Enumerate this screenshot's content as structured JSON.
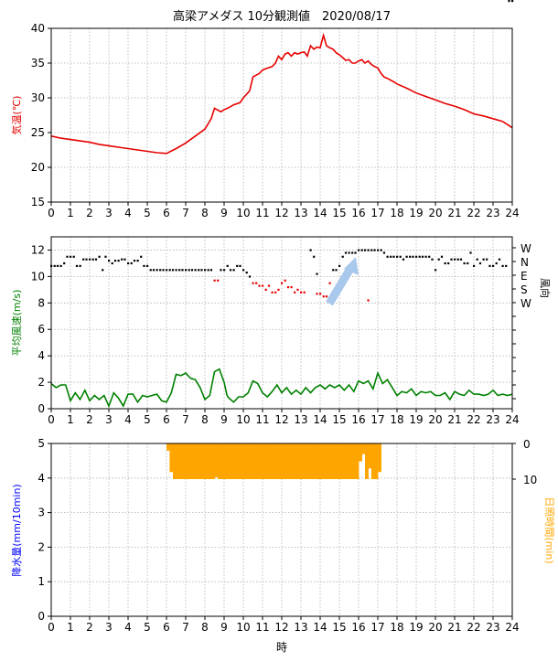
{
  "title": "高梁アメダス 10分観測値　2020/08/17",
  "xlabel": "時",
  "xticks": [
    "0",
    "1",
    "2",
    "3",
    "4",
    "5",
    "6",
    "7",
    "8",
    "9",
    "10",
    "11",
    "12",
    "13",
    "14",
    "15",
    "16",
    "17",
    "18",
    "19",
    "20",
    "21",
    "22",
    "23",
    "24"
  ],
  "colors": {
    "temp": "#e60000",
    "wind": "#008000",
    "rain_label": "#0000ff",
    "sun": "#ffa500",
    "arrow": "#a8c8ec"
  },
  "chart_data": [
    {
      "type": "line",
      "ylabel": "気温(℃)",
      "xlim": [
        0,
        24
      ],
      "ylim": [
        15,
        40
      ],
      "yticks": [
        "15",
        "20",
        "25",
        "30",
        "35",
        "40"
      ],
      "grid": true,
      "x": [
        0,
        0.5,
        1,
        1.5,
        2,
        2.5,
        3,
        3.5,
        4,
        4.5,
        5,
        5.5,
        6,
        6.5,
        7,
        7.5,
        8,
        8.33,
        8.5,
        8.83,
        9,
        9.17,
        9.5,
        9.83,
        10,
        10.33,
        10.5,
        10.83,
        11,
        11.17,
        11.5,
        11.67,
        11.83,
        12,
        12.17,
        12.33,
        12.5,
        12.67,
        12.83,
        13,
        13.17,
        13.33,
        13.5,
        13.67,
        13.83,
        14,
        14.17,
        14.33,
        14.5,
        14.67,
        14.83,
        15,
        15.17,
        15.33,
        15.5,
        15.67,
        15.83,
        16,
        16.17,
        16.33,
        16.5,
        16.67,
        16.83,
        17,
        17.17,
        17.33,
        17.5,
        17.83,
        18,
        18.5,
        19,
        19.5,
        20,
        20.5,
        21,
        21.5,
        22,
        22.5,
        23,
        23.5,
        24
      ],
      "y": [
        24.5,
        24.2,
        24,
        23.8,
        23.6,
        23.3,
        23.1,
        22.9,
        22.7,
        22.5,
        22.3,
        22.1,
        22.0,
        22.7,
        23.5,
        24.5,
        25.5,
        27,
        28.5,
        28,
        28.3,
        28.5,
        29,
        29.3,
        30,
        31,
        33,
        33.5,
        34,
        34.2,
        34.5,
        35,
        36,
        35.5,
        36.3,
        36.5,
        36,
        36.5,
        36.3,
        36.5,
        36.6,
        36,
        37.5,
        37,
        37.3,
        37.2,
        39,
        37.5,
        37.2,
        37,
        36.5,
        36.2,
        35.8,
        35.4,
        35.5,
        35,
        35,
        35.3,
        35.5,
        35,
        35.3,
        34.8,
        34.5,
        34.3,
        33.5,
        33,
        32.8,
        32.3,
        32,
        31.4,
        30.7,
        30.2,
        29.7,
        29.2,
        28.8,
        28.3,
        27.7,
        27.4,
        27,
        26.6,
        25.7
      ]
    },
    {
      "type": "line+scatter",
      "ylabel": "平均風速(m/s)",
      "y2label": "風向",
      "xlim": [
        0,
        24
      ],
      "ylim": [
        0,
        13
      ],
      "yticks": [
        "0",
        "2",
        "4",
        "6",
        "8",
        "10",
        "12"
      ],
      "direction_ticks": [
        "W",
        "N",
        "E",
        "S",
        "W"
      ],
      "grid": true,
      "series": [
        {
          "kind": "wind_speed",
          "x": [
            0,
            0.25,
            0.5,
            0.75,
            1,
            1.25,
            1.5,
            1.75,
            2,
            2.25,
            2.5,
            2.75,
            3,
            3.25,
            3.5,
            3.75,
            4,
            4.25,
            4.5,
            4.75,
            5,
            5.25,
            5.5,
            5.75,
            6,
            6.25,
            6.5,
            6.75,
            7,
            7.25,
            7.5,
            7.75,
            8,
            8.25,
            8.5,
            8.75,
            9,
            9.15,
            9.25,
            9.5,
            9.75,
            10,
            10.25,
            10.5,
            10.75,
            11,
            11.25,
            11.5,
            11.75,
            12,
            12.25,
            12.5,
            12.75,
            13,
            13.25,
            13.5,
            13.75,
            14,
            14.25,
            14.5,
            14.75,
            15,
            15.25,
            15.5,
            15.75,
            16,
            16.25,
            16.5,
            16.75,
            17,
            17.25,
            17.5,
            17.75,
            18,
            18.25,
            18.5,
            18.75,
            19,
            19.25,
            19.5,
            19.75,
            20,
            20.25,
            20.5,
            20.75,
            21,
            21.25,
            21.5,
            21.75,
            22,
            22.25,
            22.5,
            22.75,
            23,
            23.25,
            23.5,
            23.75,
            24
          ],
          "y": [
            1.9,
            1.6,
            1.8,
            1.8,
            0.6,
            1.2,
            0.7,
            1.4,
            0.6,
            1.0,
            0.7,
            1.0,
            0.2,
            1.2,
            0.8,
            0.2,
            1.1,
            1.1,
            0.5,
            1.0,
            0.9,
            1.0,
            1.1,
            0.6,
            0.5,
            1.2,
            2.6,
            2.5,
            2.7,
            2.3,
            2.2,
            1.6,
            0.7,
            1.0,
            2.8,
            3.0,
            2.0,
            1.0,
            0.8,
            0.5,
            0.9,
            0.9,
            1.2,
            2.1,
            1.9,
            1.2,
            0.9,
            1.3,
            1.8,
            1.2,
            1.6,
            1.1,
            1.4,
            1.1,
            1.6,
            1.2,
            1.6,
            1.8,
            1.5,
            1.8,
            1.6,
            1.8,
            1.4,
            1.8,
            1.3,
            2.1,
            1.9,
            2.1,
            1.5,
            2.7,
            1.9,
            2.2,
            1.6,
            1.0,
            1.3,
            1.2,
            1.5,
            1.0,
            1.3,
            1.2,
            1.3,
            1.0,
            1.0,
            1.2,
            0.7,
            1.3,
            1.1,
            1.0,
            1.4,
            1.1,
            1.1,
            1.0,
            1.1,
            1.4,
            1.0,
            1.1,
            1.0,
            1.1
          ]
        },
        {
          "kind": "wind_direction",
          "black_x": [
            0,
            0.17,
            0.33,
            0.5,
            0.67,
            0.83,
            1,
            1.17,
            1.33,
            1.5,
            1.67,
            1.83,
            2,
            2.17,
            2.33,
            2.5,
            2.67,
            2.83,
            3,
            3.17,
            3.33,
            3.5,
            3.67,
            3.83,
            4,
            4.17,
            4.33,
            4.5,
            4.67,
            4.83,
            5,
            5.17,
            5.33,
            5.5,
            5.67,
            5.83,
            6,
            6.17,
            6.33,
            6.5,
            6.67,
            6.83,
            7,
            7.17,
            7.33,
            7.5,
            7.67,
            7.83,
            8,
            8.17,
            8.33,
            8.83,
            9,
            9.17,
            9.33,
            9.5,
            9.67,
            9.83,
            10,
            10.17,
            10.33,
            13.5,
            13.67,
            13.83,
            14.67,
            14.83,
            15,
            15.17,
            15.33,
            15.5,
            15.67,
            15.83,
            16,
            16.17,
            16.33,
            16.5,
            16.67,
            16.83,
            17,
            17.17,
            17.33,
            17.5,
            17.67,
            17.83,
            18,
            18.17,
            18.33,
            18.5,
            18.67,
            18.83,
            19,
            19.17,
            19.33,
            19.5,
            19.67,
            19.83,
            20,
            20.17,
            20.33,
            20.5,
            20.67,
            20.83,
            21,
            21.17,
            21.33,
            21.5,
            21.67,
            21.83,
            22,
            22.17,
            22.33,
            22.5,
            22.67,
            22.83,
            23,
            23.17,
            23.33,
            23.5,
            23.67,
            23.83,
            24
          ],
          "black_y": [
            10.8,
            10.8,
            10.8,
            10.8,
            11,
            11.5,
            11.5,
            11.5,
            10.8,
            10.8,
            11.3,
            11.3,
            11.3,
            11.3,
            11.3,
            11.5,
            10.5,
            11.5,
            11.2,
            11,
            11.2,
            11.2,
            11.3,
            11.3,
            11,
            11,
            11.2,
            11.2,
            11.5,
            10.8,
            10.8,
            10.5,
            10.5,
            10.5,
            10.5,
            10.5,
            10.5,
            10.5,
            10.5,
            10.5,
            10.5,
            10.5,
            10.5,
            10.5,
            10.5,
            10.5,
            10.5,
            10.5,
            10.5,
            10.5,
            10.5,
            10.5,
            10.5,
            10.8,
            10.5,
            10.5,
            10.8,
            10.8,
            10.5,
            10.3,
            10,
            12,
            11.5,
            10.2,
            10.5,
            10.5,
            10.8,
            11.5,
            11.8,
            11.8,
            11.8,
            11.8,
            12,
            12,
            12,
            12,
            12,
            12,
            12,
            12,
            11.8,
            11.5,
            11.5,
            11.5,
            11.5,
            11.5,
            11.3,
            11.5,
            11.5,
            11.5,
            11.5,
            11.5,
            11.5,
            11.5,
            11.5,
            11.3,
            10.5,
            11.3,
            11.5,
            11,
            11,
            11.3,
            11.3,
            11.3,
            11.3,
            11,
            11,
            11.8,
            10.8,
            11.3,
            11,
            11.3,
            11.3,
            10.8,
            10.8,
            11,
            11.3,
            10.8,
            10.8
          ],
          "red_x": [
            8.5,
            8.67,
            10.5,
            10.67,
            10.83,
            11,
            11.17,
            11.33,
            11.5,
            11.67,
            11.83,
            12,
            12.17,
            12.33,
            12.5,
            12.67,
            12.83,
            13,
            13.17,
            13.83,
            14,
            14.17,
            14.33,
            14.5,
            16.5
          ],
          "red_y": [
            9.7,
            9.7,
            9.5,
            9.5,
            9.3,
            9.3,
            9,
            9.3,
            8.8,
            8.8,
            9,
            9.5,
            9.7,
            9.2,
            9.2,
            8.8,
            9,
            8.8,
            8.8,
            8.7,
            8.7,
            8.5,
            8.5,
            9.5,
            8.2
          ]
        }
      ]
    },
    {
      "type": "bar",
      "ylabel": "降水量(mm/10min)",
      "y2label": "日照時間(min)",
      "xlim": [
        0,
        24
      ],
      "ylim": [
        0,
        5
      ],
      "yticks": [
        "0",
        "1",
        "2",
        "3",
        "4",
        "5"
      ],
      "y2lim": [
        0,
        10
      ],
      "y2ticks": [
        "0",
        "10"
      ],
      "grid": true,
      "precip_values": [],
      "sunshine": {
        "x": [
          6.17,
          6.33,
          6.5,
          6.67,
          6.83,
          7,
          7.17,
          7.33,
          7.5,
          7.67,
          7.83,
          8,
          8.17,
          8.33,
          8.5,
          8.67,
          8.83,
          9,
          9.17,
          9.33,
          9.5,
          9.67,
          9.83,
          10,
          10.17,
          10.33,
          10.5,
          10.67,
          10.83,
          11,
          11.17,
          11.33,
          11.5,
          11.67,
          11.83,
          12,
          12.17,
          12.33,
          12.5,
          12.67,
          12.83,
          13,
          13.17,
          13.33,
          13.5,
          13.67,
          13.83,
          14,
          14.17,
          14.33,
          14.5,
          14.67,
          14.83,
          15,
          15.17,
          15.33,
          15.5,
          15.67,
          15.83,
          16,
          16.17,
          16.33,
          16.5,
          16.67,
          16.83,
          17,
          17.17
        ],
        "minutes": [
          2,
          8,
          10,
          10,
          10,
          10,
          10,
          10,
          10,
          10,
          10,
          10,
          10,
          10,
          10,
          9.5,
          10,
          10,
          10,
          10,
          10,
          10,
          10,
          10,
          10,
          10,
          10,
          10,
          10,
          10,
          10,
          10,
          10,
          10,
          10,
          10,
          10,
          10,
          10,
          10,
          10,
          10,
          10,
          10,
          10,
          10,
          10,
          10,
          10,
          10,
          10,
          10,
          10,
          10,
          10,
          10,
          10,
          10,
          10,
          10,
          5,
          3,
          10,
          7,
          10,
          10,
          8
        ]
      }
    }
  ]
}
